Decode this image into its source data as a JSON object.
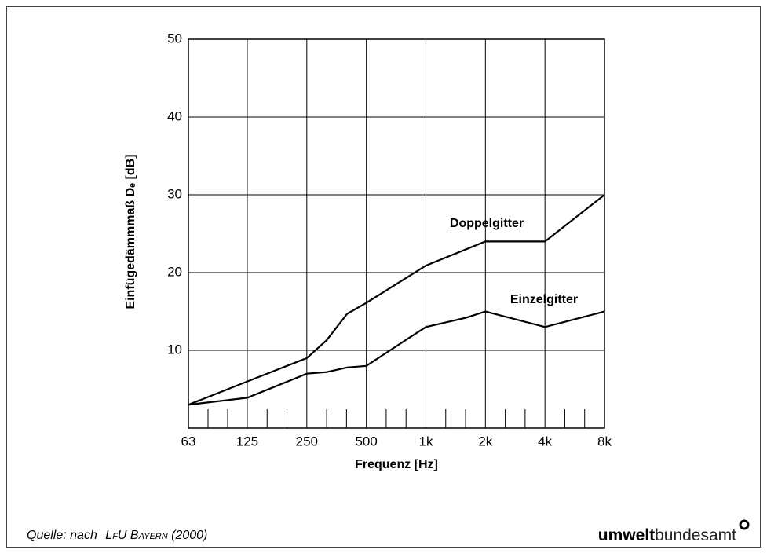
{
  "chart_data": {
    "type": "line",
    "y_label": "Einfügedämmmaß Dₑ [dB]",
    "x_label": "Frequenz [Hz]",
    "log_x": true,
    "grid": true,
    "xlim": [
      63,
      8000
    ],
    "xticks": [
      63,
      125,
      250,
      500,
      {
        "value": 1000,
        "label": "1k"
      },
      {
        "value": 2000,
        "label": "2k"
      },
      {
        "value": 4000,
        "label": "4k"
      },
      {
        "value": 8000,
        "label": "8k"
      }
    ],
    "ylim": [
      0,
      50
    ],
    "yticks": [
      10,
      20,
      30,
      40,
      50
    ],
    "series": [
      {
        "name": "Doppelgitter",
        "color": "#000000",
        "x": [
          63,
          125,
          250,
          315,
          400,
          500,
          1000,
          2000,
          4000,
          8000
        ],
        "values": [
          3,
          6,
          9,
          11.3,
          14.7,
          16.1,
          20.9,
          24,
          24,
          30
        ]
      },
      {
        "name": "Einzelgitter",
        "color": "#000000",
        "x": [
          63,
          125,
          250,
          315,
          400,
          500,
          800,
          1000,
          1600,
          2000,
          4000,
          8000
        ],
        "values": [
          3,
          3.9,
          7,
          7.2,
          7.8,
          8,
          11.4,
          13,
          14.2,
          15,
          13,
          15
        ]
      }
    ]
  },
  "footer": {
    "source_prefix": "Quelle: nach",
    "source_author": "LfU Bayern",
    "source_year": "(2000)",
    "logo_bold": "umwelt",
    "logo_regular": "bundesamt"
  }
}
